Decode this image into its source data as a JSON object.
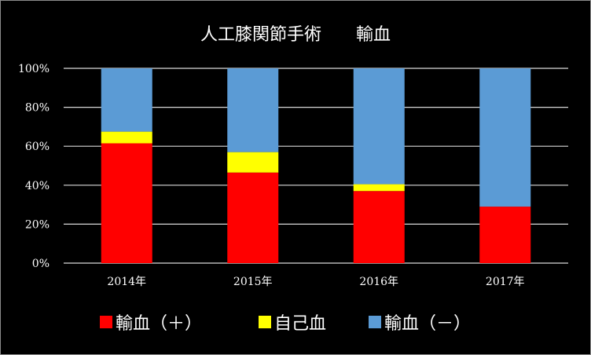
{
  "chart_data": {
    "type": "bar",
    "stacked": true,
    "percent_stacked": true,
    "title": "人工膝関節手術　　輸血",
    "categories": [
      "2014年",
      "2015年",
      "2016年",
      "2017年"
    ],
    "series": [
      {
        "name": "輸血（＋）",
        "color": "#ff0000",
        "values": [
          61.5,
          46.5,
          37,
          29
        ]
      },
      {
        "name": "自己血",
        "color": "#ffff00",
        "values": [
          6,
          10.5,
          3.5,
          0
        ]
      },
      {
        "name": "輸血（－）",
        "color": "#5b9bd5",
        "values": [
          32.5,
          43,
          59.5,
          71
        ]
      }
    ],
    "ylim": [
      0,
      100
    ],
    "yticks": [
      "0%",
      "20%",
      "40%",
      "60%",
      "80%",
      "100%"
    ],
    "ytick_values": [
      0,
      20,
      40,
      60,
      80,
      100
    ],
    "grid": true,
    "legend_position": "bottom",
    "background_color": "#000000",
    "text_color": "#ffffff",
    "gridline_color": "#d9d9d9"
  }
}
